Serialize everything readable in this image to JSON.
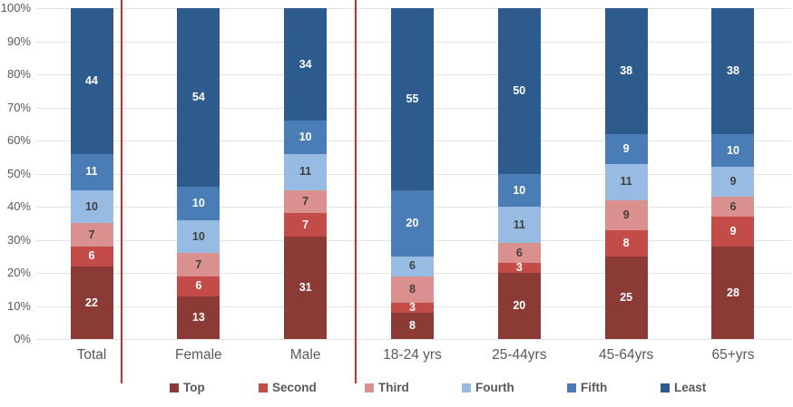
{
  "chart_data": {
    "type": "bar",
    "stacked": true,
    "units": "percent",
    "title": "",
    "xlabel": "",
    "ylabel": "",
    "categories": [
      "Total",
      "Female",
      "Male",
      "18-24 yrs",
      "25-44yrs",
      "45-64yrs",
      "65+yrs"
    ],
    "series": [
      {
        "name": "Top",
        "color": "#8c3a36",
        "label_color": "#ffffff",
        "values": [
          22,
          13,
          31,
          8,
          20,
          25,
          28
        ]
      },
      {
        "name": "Second",
        "color": "#c44c48",
        "label_color": "#ffffff",
        "values": [
          6,
          6,
          7,
          3,
          3,
          8,
          9
        ]
      },
      {
        "name": "Third",
        "color": "#d9908e",
        "label_color": "#3f3f3f",
        "values": [
          7,
          7,
          7,
          8,
          6,
          9,
          6
        ]
      },
      {
        "name": "Fourth",
        "color": "#97bbe2",
        "label_color": "#3f3f3f",
        "values": [
          10,
          10,
          11,
          6,
          11,
          11,
          9
        ]
      },
      {
        "name": "Fifth",
        "color": "#4a7cb5",
        "label_color": "#ffffff",
        "values": [
          11,
          10,
          10,
          20,
          10,
          9,
          10
        ]
      },
      {
        "name": "Least",
        "color": "#2e5b8e",
        "label_color": "#ffffff",
        "values": [
          44,
          54,
          34,
          55,
          50,
          38,
          38
        ]
      }
    ],
    "y_axis": {
      "min": 0,
      "max": 100,
      "tick_step": 10,
      "ticks": [
        "0%",
        "10%",
        "20%",
        "30%",
        "40%",
        "50%",
        "60%",
        "70%",
        "80%",
        "90%",
        "100%"
      ],
      "grid": true
    },
    "legend": {
      "position": "bottom",
      "labels": [
        "Top",
        "Second",
        "Third",
        "Fourth",
        "Fifth",
        "Least"
      ]
    },
    "separators": {
      "count": 2,
      "color": "#d32b2b",
      "between": [
        [
          "Total",
          "Female"
        ],
        [
          "Male",
          "18-24 yrs"
        ]
      ]
    }
  }
}
